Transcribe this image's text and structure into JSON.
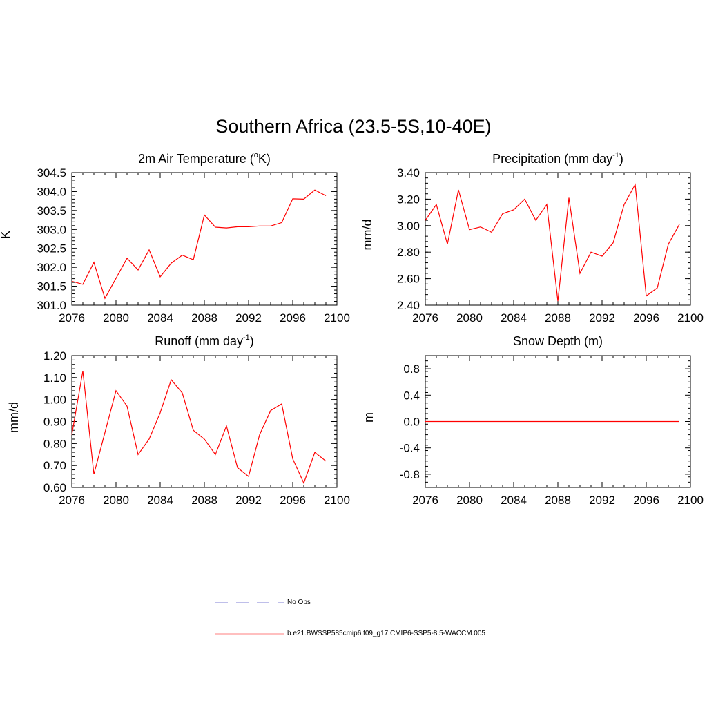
{
  "title": "Southern Africa (23.5-5S,10-40E)",
  "colors": {
    "model": "#ff0000",
    "obs": "#9999dd",
    "axis": "#000000"
  },
  "legend": [
    {
      "label": "No Obs",
      "style": "dashed",
      "color": "#9999dd"
    },
    {
      "label": "b.e21.BWSSP585cmip6.f09_g17.CMIP6-SSP5-8.5-WACCM.005",
      "style": "solid",
      "color": "#ff9999"
    }
  ],
  "chart_data": [
    {
      "type": "line",
      "title": "2m Air Temperature (",
      "title_sup": "o",
      "title_after": "K)",
      "ylabel": "K",
      "xlim": [
        2076,
        2100
      ],
      "ylim": [
        301.0,
        304.5
      ],
      "xticks": [
        "2076",
        "2080",
        "2084",
        "2088",
        "2092",
        "2096",
        "2100"
      ],
      "yticks": [
        "301.0",
        "301.5",
        "302.0",
        "302.5",
        "303.0",
        "303.5",
        "304.0",
        "304.5"
      ],
      "x": [
        2076,
        2077,
        2078,
        2079,
        2080,
        2081,
        2082,
        2083,
        2084,
        2085,
        2086,
        2087,
        2088,
        2089,
        2090,
        2091,
        2092,
        2093,
        2094,
        2095,
        2096,
        2097,
        2098,
        2099
      ],
      "values": [
        301.63,
        301.55,
        302.13,
        301.18,
        301.71,
        302.24,
        301.93,
        302.46,
        301.75,
        302.11,
        302.32,
        302.2,
        303.38,
        303.06,
        303.04,
        303.07,
        303.07,
        303.09,
        303.09,
        303.18,
        303.81,
        303.8,
        304.04,
        303.89
      ]
    },
    {
      "type": "line",
      "title": "Precipitation (mm day",
      "title_sup": "-1",
      "title_after": ")",
      "ylabel": "mm/d",
      "xlim": [
        2076,
        2100
      ],
      "ylim": [
        2.4,
        3.4
      ],
      "xticks": [
        "2076",
        "2080",
        "2084",
        "2088",
        "2092",
        "2096",
        "2100"
      ],
      "yticks": [
        "2.40",
        "2.60",
        "2.80",
        "3.00",
        "3.20",
        "3.40"
      ],
      "x": [
        2076,
        2077,
        2078,
        2079,
        2080,
        2081,
        2082,
        2083,
        2084,
        2085,
        2086,
        2087,
        2088,
        2089,
        2090,
        2091,
        2092,
        2093,
        2094,
        2095,
        2096,
        2097,
        2098,
        2099
      ],
      "values": [
        3.04,
        3.16,
        2.86,
        3.27,
        2.97,
        2.99,
        2.95,
        3.09,
        3.12,
        3.2,
        3.04,
        3.16,
        2.43,
        3.21,
        2.64,
        2.8,
        2.77,
        2.87,
        3.16,
        3.31,
        2.47,
        2.53,
        2.86,
        3.01
      ]
    },
    {
      "type": "line",
      "title": "Runoff (mm day",
      "title_sup": "-1",
      "title_after": ")",
      "ylabel": "mm/d",
      "xlim": [
        2076,
        2100
      ],
      "ylim": [
        0.6,
        1.2
      ],
      "xticks": [
        "2076",
        "2080",
        "2084",
        "2088",
        "2092",
        "2096",
        "2100"
      ],
      "yticks": [
        "0.60",
        "0.70",
        "0.80",
        "0.90",
        "1.00",
        "1.10",
        "1.20"
      ],
      "x": [
        2076,
        2077,
        2078,
        2079,
        2080,
        2081,
        2082,
        2083,
        2084,
        2085,
        2086,
        2087,
        2088,
        2089,
        2090,
        2091,
        2092,
        2093,
        2094,
        2095,
        2096,
        2097,
        2098,
        2099
      ],
      "values": [
        0.84,
        1.13,
        0.66,
        0.85,
        1.04,
        0.97,
        0.75,
        0.82,
        0.94,
        1.09,
        1.03,
        0.86,
        0.82,
        0.75,
        0.88,
        0.69,
        0.65,
        0.84,
        0.95,
        0.98,
        0.73,
        0.62,
        0.76,
        0.72
      ]
    },
    {
      "type": "line",
      "title": "Snow Depth (m)",
      "title_sup": "",
      "title_after": "",
      "ylabel": "m",
      "xlim": [
        2076,
        2100
      ],
      "ylim": [
        -1.0,
        1.0
      ],
      "xticks": [
        "2076",
        "2080",
        "2084",
        "2088",
        "2092",
        "2096",
        "2100"
      ],
      "yticks": [
        "-0.8",
        "-0.4",
        "0.0",
        "0.4",
        "0.8"
      ],
      "x": [
        2076,
        2099
      ],
      "values": [
        0.0,
        0.0
      ]
    }
  ]
}
